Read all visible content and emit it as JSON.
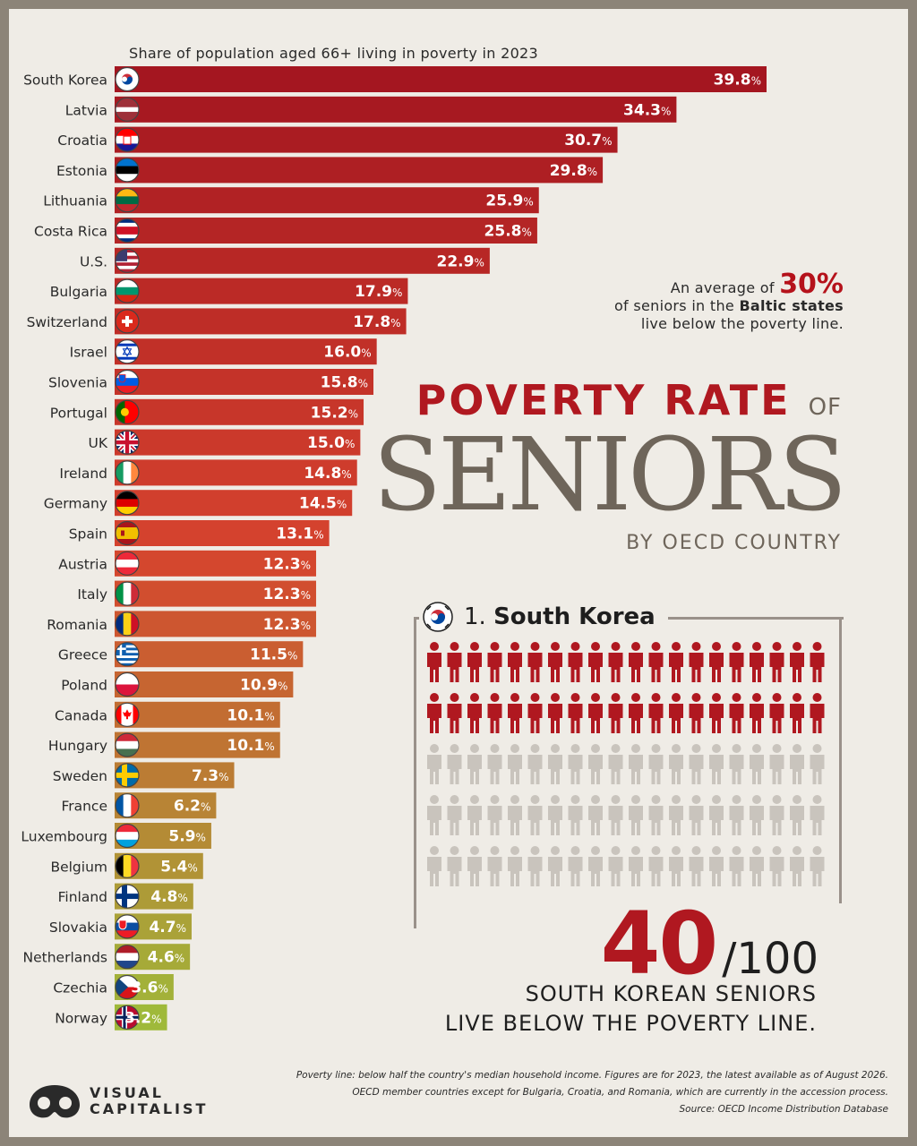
{
  "header": {
    "subtitle": "Share of population aged 66+ living in poverty in 2023"
  },
  "chart_data": {
    "type": "bar",
    "orientation": "horizontal",
    "value_suffix": "%",
    "categories": [
      "South Korea",
      "Latvia",
      "Croatia",
      "Estonia",
      "Lithuania",
      "Costa Rica",
      "U.S.",
      "Bulgaria",
      "Switzerland",
      "Israel",
      "Slovenia",
      "Portugal",
      "UK",
      "Ireland",
      "Germany",
      "Spain",
      "Austria",
      "Italy",
      "Romania",
      "Greece",
      "Poland",
      "Canada",
      "Hungary",
      "Sweden",
      "France",
      "Luxembourg",
      "Belgium",
      "Finland",
      "Slovakia",
      "Netherlands",
      "Czechia",
      "Norway"
    ],
    "values": [
      39.8,
      34.3,
      30.7,
      29.8,
      25.9,
      25.8,
      22.9,
      17.9,
      17.8,
      16.0,
      15.8,
      15.2,
      15.0,
      14.8,
      14.5,
      13.1,
      12.3,
      12.3,
      12.3,
      11.5,
      10.9,
      10.1,
      10.1,
      7.3,
      6.2,
      5.9,
      5.4,
      4.8,
      4.7,
      4.6,
      3.6,
      3.2
    ],
    "value_labels": [
      "39.8",
      "34.3",
      "30.7",
      "29.8",
      "25.9",
      "25.8",
      "22.9",
      "17.9",
      "17.8",
      "16.0",
      "15.8",
      "15.2",
      "15.0",
      "14.8",
      "14.5",
      "13.1",
      "12.3",
      "12.3",
      "12.3",
      "11.5",
      "10.9",
      "10.1",
      "10.1",
      "7.3",
      "6.2",
      "5.9",
      "5.4",
      "4.8",
      "4.7",
      "4.6",
      "3.6",
      "3.2"
    ],
    "flag_icons": [
      "south-korea-flag-icon",
      "latvia-flag-icon",
      "croatia-flag-icon",
      "estonia-flag-icon",
      "lithuania-flag-icon",
      "costa-rica-flag-icon",
      "us-flag-icon",
      "bulgaria-flag-icon",
      "switzerland-flag-icon",
      "israel-flag-icon",
      "slovenia-flag-icon",
      "portugal-flag-icon",
      "uk-flag-icon",
      "ireland-flag-icon",
      "germany-flag-icon",
      "spain-flag-icon",
      "austria-flag-icon",
      "italy-flag-icon",
      "romania-flag-icon",
      "greece-flag-icon",
      "poland-flag-icon",
      "canada-flag-icon",
      "hungary-flag-icon",
      "sweden-flag-icon",
      "france-flag-icon",
      "luxembourg-flag-icon",
      "belgium-flag-icon",
      "finland-flag-icon",
      "slovakia-flag-icon",
      "netherlands-flag-icon",
      "czechia-flag-icon",
      "norway-flag-icon"
    ],
    "xlim": [
      0,
      40
    ],
    "grid": false,
    "legend": "none",
    "colors": {
      "high": "#a41620",
      "mid": "#d6432e",
      "low": "#9fb93a"
    }
  },
  "callout": {
    "line1_prefix": "An average of ",
    "line1_big": "30%",
    "line2_prefix": "of seniors in the ",
    "line2_bold": "Baltic states",
    "line3": "live below the poverty line."
  },
  "title": {
    "part1": "POVERTY RATE",
    "part1_suffix": "OF",
    "part2": "SENIORS",
    "part3": "BY OECD COUNTRY"
  },
  "highlight": {
    "rank": "1.",
    "country": "South Korea",
    "flag_icon": "south-korea-flag-icon",
    "poor_count": 40,
    "total": 100,
    "number": "40",
    "denominator": "/100",
    "line1": "SOUTH KOREAN SENIORS",
    "line2": "LIVE BELOW THE POVERTY LINE.",
    "colors": {
      "poor": "#b01820",
      "other": "#c9c4bd"
    }
  },
  "footer": {
    "note1": "Poverty line: below half the country's median household income. Figures are for 2023, the latest available as of August 2026.",
    "note2": "OECD member countries except for Bulgaria, Croatia, and Romania, which are currently in the accession process.",
    "source": "Source: OECD Income Distribution Database"
  },
  "brand": {
    "line1": "VISUAL",
    "line2": "CAPITALIST",
    "logo_icon": "visual-capitalist-logo-icon"
  }
}
